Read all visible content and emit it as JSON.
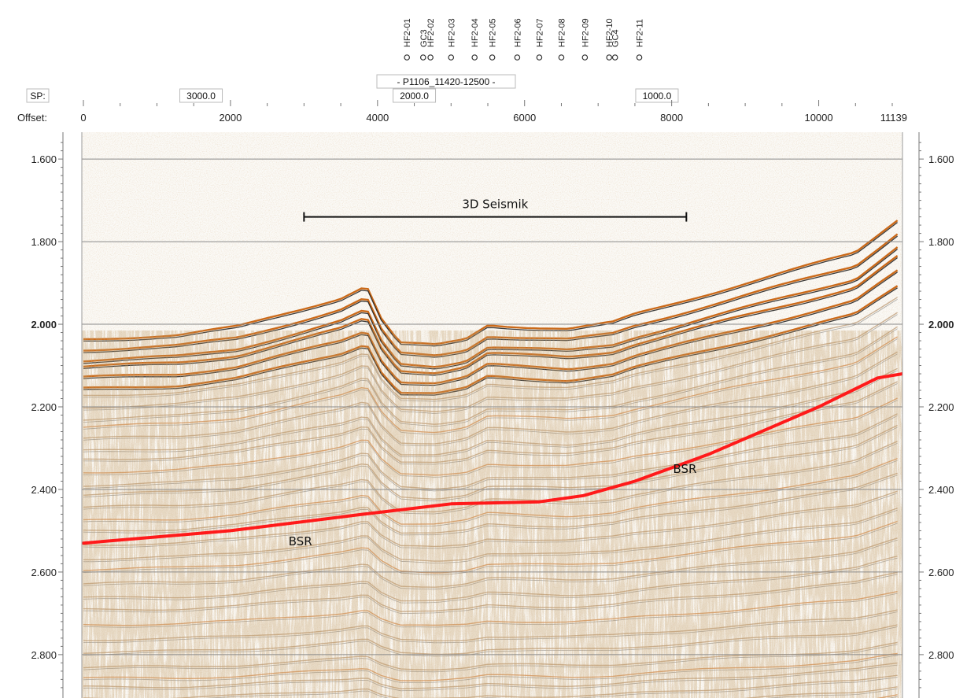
{
  "chart_data": {
    "type": "seismic-section",
    "line_name": "- P1106_11420-12500 -",
    "axis_labels": {
      "sp": "SP:",
      "offset": "Offset:"
    },
    "offset_ticks": [
      0,
      2000,
      4000,
      6000,
      8000,
      10000,
      11139
    ],
    "offset_range": [
      0,
      11139
    ],
    "sp_ticks": [
      {
        "label": "3000.0",
        "offset": 1600
      },
      {
        "label": "2000.0",
        "offset": 4500
      },
      {
        "label": "1000.0",
        "offset": 7800
      }
    ],
    "time_ticks_left": [
      "1.600",
      "1.800",
      "2.000",
      "2.200",
      "2.400",
      "2.600",
      "2.800"
    ],
    "time_ticks_right": [
      "1.600",
      "1.800",
      "2.000",
      "2.200",
      "2.400",
      "2.600",
      "2.800"
    ],
    "time_values": [
      1.6,
      1.8,
      2.0,
      2.2,
      2.4,
      2.6,
      2.8
    ],
    "time_range": [
      1.535,
      2.905
    ],
    "grid": true,
    "wells": [
      {
        "name": "HF2-01",
        "offset": 4400
      },
      {
        "name": "GC3",
        "offset": 4620
      },
      {
        "name": "HF2-02",
        "offset": 4720
      },
      {
        "name": "HF2-03",
        "offset": 5000
      },
      {
        "name": "HF2-04",
        "offset": 5320
      },
      {
        "name": "HF2-05",
        "offset": 5560
      },
      {
        "name": "HF2-06",
        "offset": 5900
      },
      {
        "name": "HF2-07",
        "offset": 6200
      },
      {
        "name": "HF2-08",
        "offset": 6500
      },
      {
        "name": "HF2-09",
        "offset": 6820
      },
      {
        "name": "HF2-10",
        "offset": 7150
      },
      {
        "name": "GC4",
        "offset": 7230
      },
      {
        "name": "HF2-11",
        "offset": 7560
      }
    ],
    "annotations": {
      "survey_label": "3D Seismik",
      "survey_extent": [
        3000,
        8200
      ],
      "survey_time": 1.74,
      "bsr_labels": [
        {
          "text": "BSR",
          "offset": 2950,
          "time": 2.535
        },
        {
          "text": "BSR",
          "offset": 8180,
          "time": 2.36
        }
      ]
    },
    "bsr_line": {
      "color": "#ff1a1a",
      "points": [
        [
          0,
          2.53
        ],
        [
          2000,
          2.5
        ],
        [
          3800,
          2.46
        ],
        [
          5000,
          2.435
        ],
        [
          6200,
          2.43
        ],
        [
          6800,
          2.415
        ],
        [
          7500,
          2.38
        ],
        [
          8500,
          2.315
        ],
        [
          10000,
          2.2
        ],
        [
          10800,
          2.13
        ],
        [
          11139,
          2.12
        ]
      ]
    },
    "seafloor": {
      "points": [
        [
          0,
          2.03
        ],
        [
          1300,
          2.02
        ],
        [
          2100,
          2.0
        ],
        [
          2900,
          1.96
        ],
        [
          3500,
          1.93
        ],
        [
          3850,
          1.9
        ],
        [
          4050,
          1.98
        ],
        [
          4300,
          2.04
        ],
        [
          4800,
          2.045
        ],
        [
          5200,
          2.03
        ],
        [
          5500,
          1.995
        ],
        [
          6000,
          2.0
        ],
        [
          6600,
          2.005
        ],
        [
          7200,
          1.99
        ],
        [
          7500,
          1.97
        ],
        [
          8500,
          1.92
        ],
        [
          9500,
          1.87
        ],
        [
          10500,
          1.82
        ],
        [
          11139,
          1.73
        ]
      ]
    },
    "colors": {
      "positive": "#c8620e",
      "negative": "#1a1a1a",
      "grid": "#8a8a8a",
      "bsr": "#ff1a1a"
    }
  }
}
